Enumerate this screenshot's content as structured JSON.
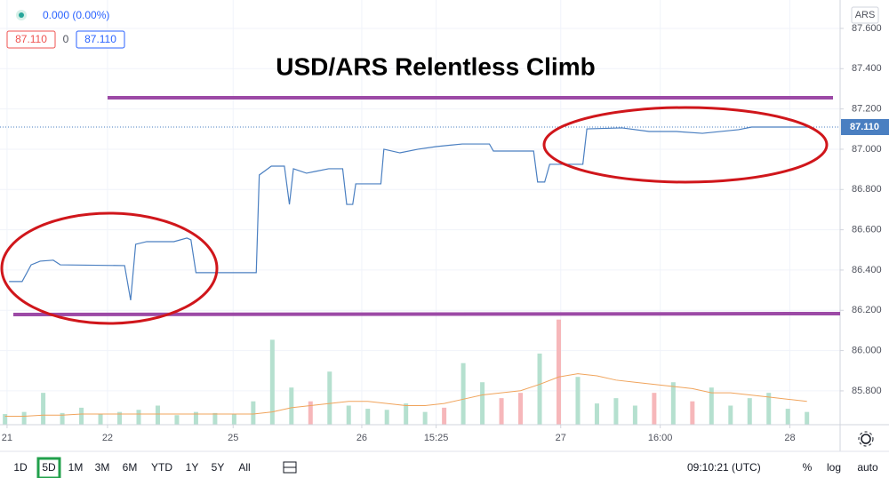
{
  "header": {
    "change": "0.000 (0.00%)",
    "bid": "87.110",
    "spread": "0",
    "ask": "87.110",
    "currency": "ARS"
  },
  "chart_data": {
    "type": "line",
    "title": "USD/ARS Relentless Climb",
    "grid": true,
    "series": [
      {
        "color": "#4a7fc1",
        "x": [
          0.09,
          0.22,
          0.31,
          0.4,
          0.53,
          0.6,
          1.24,
          1.3,
          1.35,
          1.46,
          1.73,
          1.86,
          1.9,
          1.95,
          2.55,
          2.58,
          2.7,
          2.83,
          2.88,
          2.92,
          3.05,
          3.14,
          3.27,
          3.41,
          3.45,
          3.51,
          3.54,
          3.79,
          3.82,
          3.98,
          4.16,
          4.34,
          4.6,
          4.87,
          4.91,
          5.31,
          5.35,
          5.42,
          5.47,
          5.8,
          5.84,
          6.19,
          6.46,
          6.73,
          6.99,
          7.35,
          7.48,
          8.05
        ],
        "values": [
          86.343,
          86.343,
          86.426,
          86.444,
          86.449,
          86.426,
          86.422,
          86.25,
          86.528,
          86.541,
          86.541,
          86.559,
          86.55,
          86.387,
          86.387,
          86.872,
          86.916,
          86.916,
          86.726,
          86.903,
          86.881,
          86.89,
          86.903,
          86.903,
          86.726,
          86.726,
          86.828,
          86.828,
          87.0,
          86.982,
          87.0,
          87.013,
          87.026,
          87.026,
          86.991,
          86.991,
          86.837,
          86.837,
          86.925,
          86.925,
          87.101,
          87.106,
          87.088,
          87.088,
          87.079,
          87.097,
          87.11,
          87.11
        ]
      }
    ],
    "volume": {
      "y2lim": [
        0,
        400
      ],
      "ma_color": "#f0a45c",
      "x": [
        0.05,
        0.24,
        0.43,
        0.62,
        0.81,
        1.0,
        1.19,
        1.38,
        1.57,
        1.76,
        1.95,
        2.14,
        2.33,
        2.52,
        2.71,
        2.9,
        3.09,
        3.28,
        3.47,
        3.66,
        3.85,
        4.04,
        4.23,
        4.42,
        4.61,
        4.8,
        4.99,
        5.18,
        5.37,
        5.56,
        5.75,
        5.94,
        6.13,
        6.32,
        6.51,
        6.7,
        6.89,
        7.08,
        7.27,
        7.46,
        7.65,
        7.84,
        8.03
      ],
      "values": [
        10,
        12,
        30,
        11,
        16,
        10,
        12,
        14,
        18,
        9,
        12,
        11,
        10,
        22,
        80,
        35,
        22,
        50,
        18,
        15,
        14,
        20,
        12,
        16,
        58,
        40,
        25,
        30,
        67,
        99,
        45,
        20,
        25,
        18,
        30,
        40,
        22,
        35,
        18,
        25,
        30,
        15,
        12
      ],
      "colors": [
        "#b5e0cf",
        "#b5e0cf",
        "#b5e0cf",
        "#b5e0cf",
        "#b5e0cf",
        "#b5e0cf",
        "#b5e0cf",
        "#b5e0cf",
        "#b5e0cf",
        "#b5e0cf",
        "#b5e0cf",
        "#b5e0cf",
        "#b5e0cf",
        "#b5e0cf",
        "#b5e0cf",
        "#b5e0cf",
        "#f6b7ba",
        "#b5e0cf",
        "#b5e0cf",
        "#b5e0cf",
        "#b5e0cf",
        "#b5e0cf",
        "#b5e0cf",
        "#f6b7ba",
        "#b5e0cf",
        "#b5e0cf",
        "#f6b7ba",
        "#f6b7ba",
        "#b5e0cf",
        "#f6b7ba",
        "#b5e0cf",
        "#b5e0cf",
        "#b5e0cf",
        "#b5e0cf",
        "#f6b7ba",
        "#b5e0cf",
        "#f6b7ba",
        "#b5e0cf",
        "#b5e0cf",
        "#b5e0cf",
        "#b5e0cf",
        "#b5e0cf",
        "#b5e0cf"
      ],
      "ma_values": [
        8,
        8,
        9,
        9,
        10,
        10,
        10,
        10,
        10,
        10,
        10,
        10,
        10,
        10,
        12,
        16,
        18,
        20,
        22,
        22,
        20,
        18,
        18,
        20,
        24,
        28,
        30,
        32,
        38,
        45,
        48,
        46,
        42,
        40,
        38,
        36,
        34,
        30,
        30,
        28,
        26,
        24,
        22
      ]
    },
    "last_price": {
      "value": 87.11,
      "label": "87.110"
    },
    "ylim": [
      85.632,
      87.741
    ],
    "yticks": [
      {
        "value": 85.8,
        "label": "85.800"
      },
      {
        "value": 86.0,
        "label": "86.000"
      },
      {
        "value": 86.2,
        "label": "86.200"
      },
      {
        "value": 86.4,
        "label": "86.400"
      },
      {
        "value": 86.6,
        "label": "86.600"
      },
      {
        "value": 86.8,
        "label": "86.800"
      },
      {
        "value": 87.0,
        "label": "87.000"
      },
      {
        "value": 87.2,
        "label": "87.200"
      },
      {
        "value": 87.4,
        "label": "87.400"
      },
      {
        "value": 87.6,
        "label": "87.600"
      }
    ],
    "xlim": [
      0,
      8.36
    ],
    "xticks": [
      {
        "value": 0.07,
        "label": "21"
      },
      {
        "value": 1.07,
        "label": "22"
      },
      {
        "value": 2.32,
        "label": "25"
      },
      {
        "value": 3.6,
        "label": "26"
      },
      {
        "value": 4.34,
        "label": "15:25"
      },
      {
        "value": 5.58,
        "label": "27"
      },
      {
        "value": 6.57,
        "label": "16:00"
      },
      {
        "value": 7.86,
        "label": "28"
      }
    ]
  },
  "toolbar": {
    "ranges": [
      "1D",
      "5D",
      "1M",
      "3M",
      "6M",
      "YTD",
      "1Y",
      "5Y",
      "All"
    ],
    "time": "09:10:21 (UTC)",
    "options": [
      "%",
      "log",
      "auto"
    ]
  }
}
